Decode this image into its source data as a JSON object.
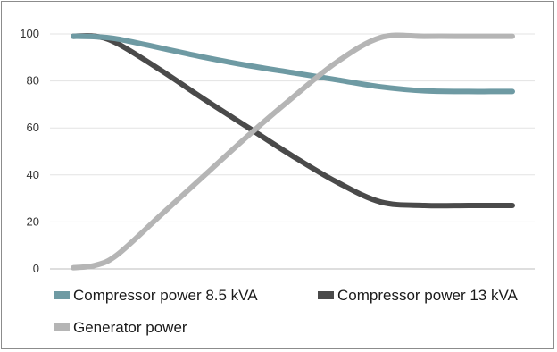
{
  "chart_data": {
    "type": "line",
    "title": "",
    "xlabel": "",
    "ylabel": "",
    "ylim": [
      0,
      100
    ],
    "yticks": [
      "0",
      "20",
      "40",
      "60",
      "80",
      "100"
    ],
    "grid": true,
    "legend_position": "bottom",
    "x": [
      0,
      0.05,
      0.1,
      0.2,
      0.3,
      0.4,
      0.5,
      0.6,
      0.7,
      0.8,
      0.9,
      0.95,
      1.0
    ],
    "series": [
      {
        "name": "Compressor power 8.5 kVA",
        "color": "#6e9aa3",
        "values": [
          99,
          98.8,
          97.9,
          94,
          90,
          86.5,
          83.5,
          80.5,
          77.5,
          75.8,
          75.5,
          75.5,
          75.5
        ]
      },
      {
        "name": "Compressor power 13 kVA",
        "color": "#4a4a4a",
        "values": [
          99,
          99,
          96,
          84.5,
          72,
          60,
          48,
          37,
          28.5,
          27,
          27,
          27,
          27
        ]
      },
      {
        "name": "Generator power",
        "color": "#b5b5b5",
        "values": [
          0.5,
          1.5,
          6,
          23,
          40,
          57,
          73,
          88,
          98.5,
          99,
          99,
          99,
          99
        ]
      }
    ]
  }
}
